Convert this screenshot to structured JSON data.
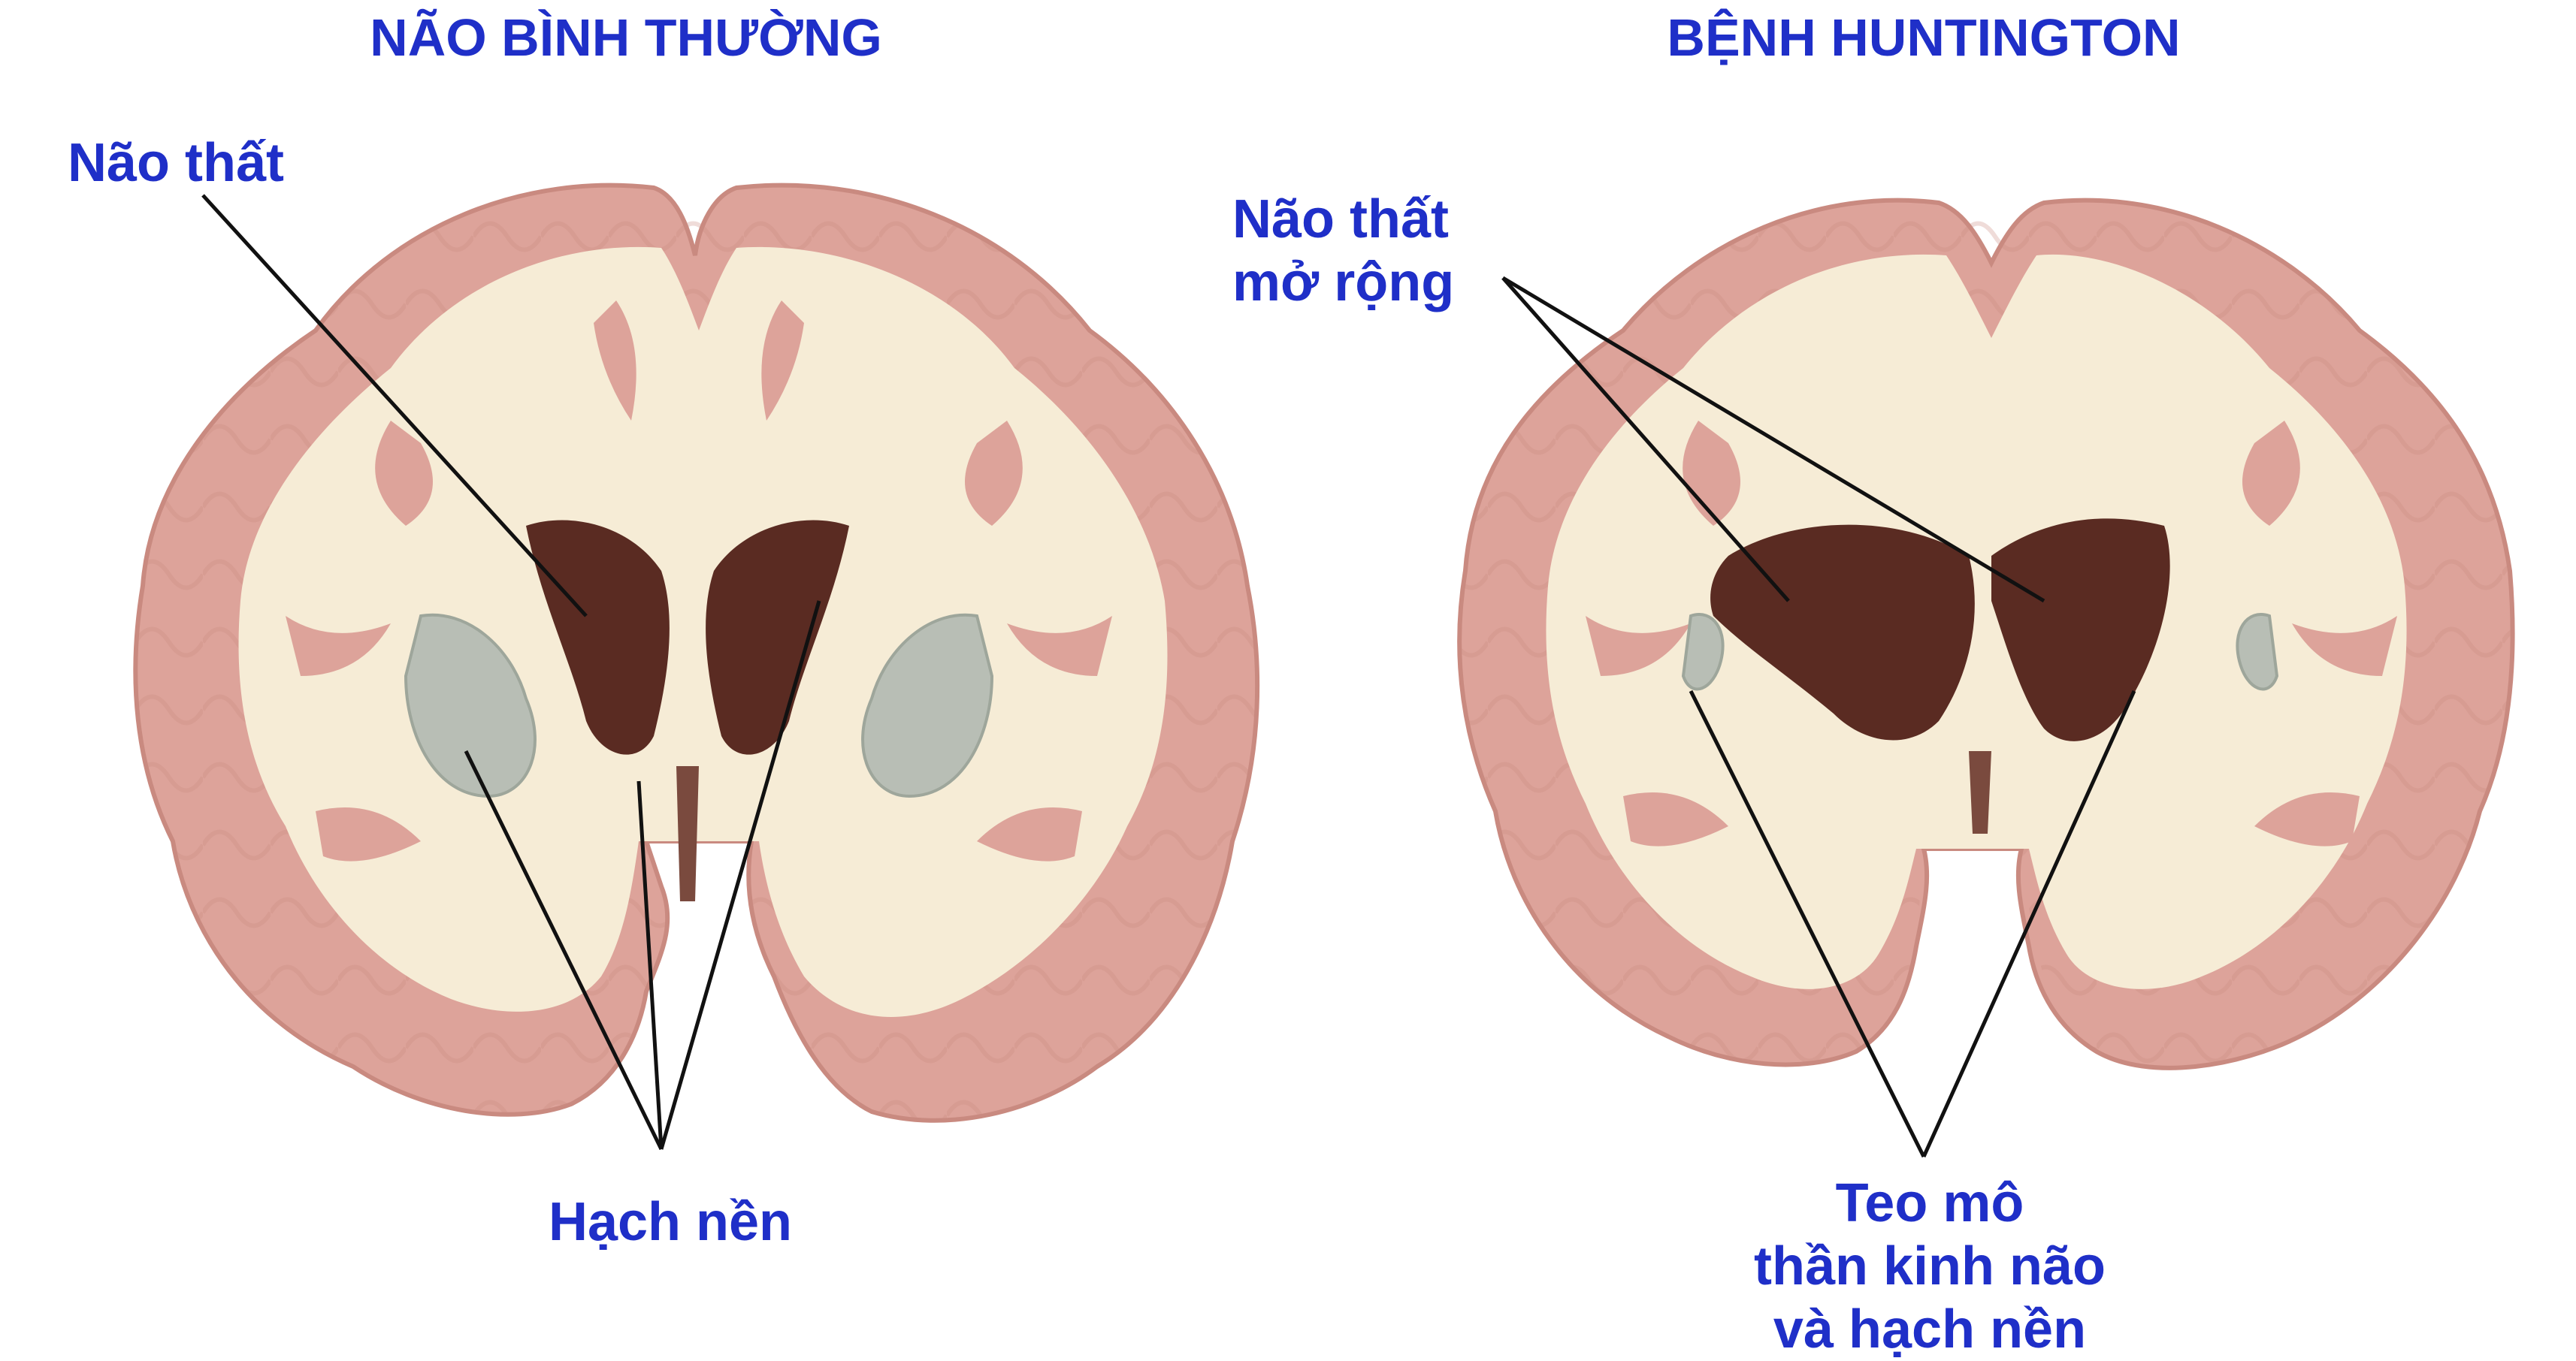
{
  "panels": {
    "normal": {
      "title": "NÃO BÌNH THƯỜNG",
      "ventricle_label": "Não thất",
      "basal_label": "Hạch nền"
    },
    "huntington": {
      "title": "BỆNH HUNTINGTON",
      "ventricle_label_line1": "Não thất",
      "ventricle_label_line2": "mở rộng",
      "atrophy_line1": "Teo mô",
      "atrophy_line2": "thần kinh não",
      "atrophy_line3": "và hạch nền"
    }
  },
  "colors": {
    "label_blue": "#1f2fc8",
    "cortex_pink": "#dda39a",
    "cortex_edge": "#c98a80",
    "white_matter": "#f6ecd6",
    "ventricle_brown": "#5a2b22",
    "basal_gray": "#b8beb5",
    "leader_line": "#111111"
  },
  "icons": [
    "normal-brain-cross-section",
    "huntington-brain-cross-section"
  ]
}
